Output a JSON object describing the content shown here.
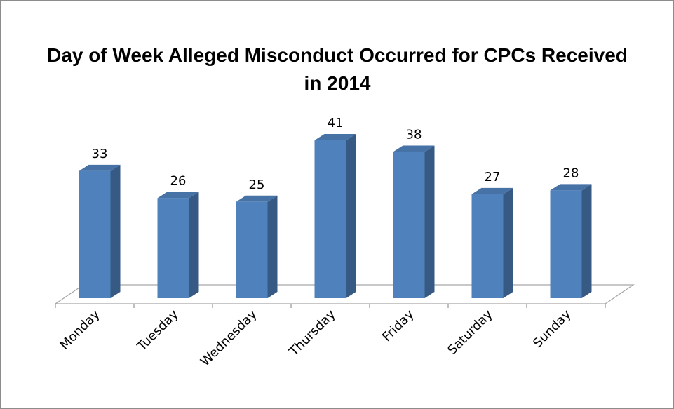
{
  "chart_data": {
    "type": "bar3d",
    "title": "Day of Week Alleged Misconduct Occurred for CPCs Received in 2014",
    "categories": [
      "Monday",
      "Tuesday",
      "Wednesday",
      "Thursday",
      "Friday",
      "Saturday",
      "Sunday"
    ],
    "values": [
      33,
      26,
      25,
      41,
      38,
      27,
      28
    ],
    "color": "#4f81bd"
  }
}
